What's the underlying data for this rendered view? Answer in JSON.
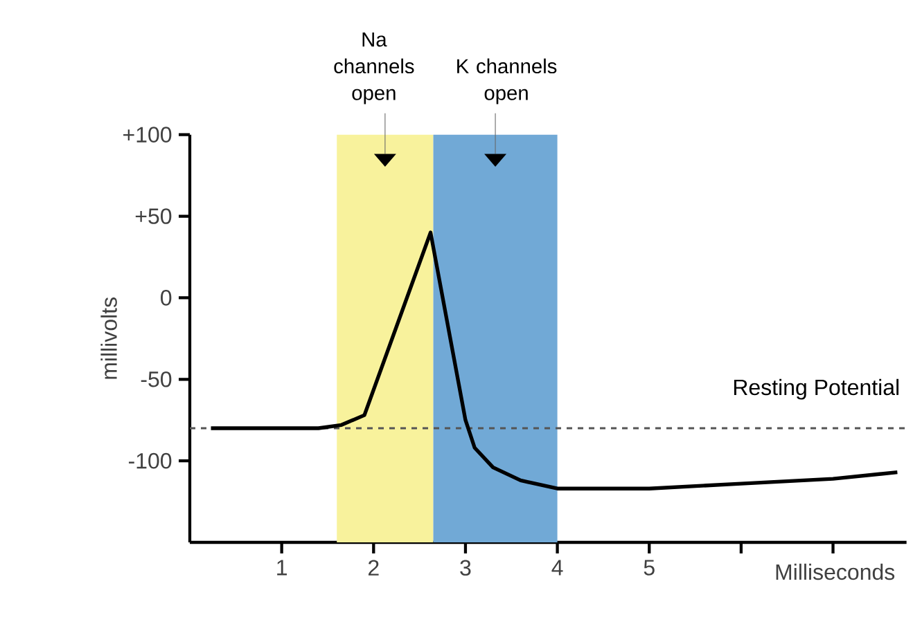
{
  "chart_data": {
    "type": "line",
    "xlabel": "Milliseconds",
    "ylabel": "millivolts",
    "x": [
      0.23,
      1.4,
      1.65,
      1.9,
      2.62,
      3.0,
      3.1,
      3.3,
      3.6,
      4.0,
      5.0,
      6.0,
      7.0,
      7.7
    ],
    "values": [
      -80,
      -80,
      -78,
      -72,
      40,
      -75,
      -92,
      -104,
      -112,
      -117,
      -117,
      -114,
      -111,
      -107
    ],
    "color": "#000000",
    "marker": "none",
    "line_style": "solid",
    "grid": false,
    "xlim": [
      0,
      7.8
    ],
    "ylim": [
      -150,
      100
    ],
    "xticks": [
      1,
      2,
      3,
      4,
      5,
      {
        "value": 6,
        "label": null
      },
      {
        "value": 7,
        "label": null
      }
    ],
    "yticks": [
      {
        "value": -100,
        "label": "-100"
      },
      {
        "value": -50,
        "label": "-50"
      },
      {
        "value": 0,
        "label": "0"
      },
      {
        "value": 50,
        "label": "+50"
      },
      {
        "value": 100,
        "label": "+100"
      }
    ],
    "bands": [
      {
        "axis": "x",
        "from": 1.6,
        "to": 2.65,
        "color": "#f8f29c",
        "label": "Na channels open"
      },
      {
        "axis": "x",
        "from": 2.65,
        "to": 4.0,
        "color": "#71a9d6",
        "label": "K channels open"
      }
    ],
    "ref_lines": [
      {
        "axis": "y",
        "value": -80,
        "label": "Resting Potential",
        "color": "#555555",
        "line_style": "dashed"
      }
    ]
  }
}
